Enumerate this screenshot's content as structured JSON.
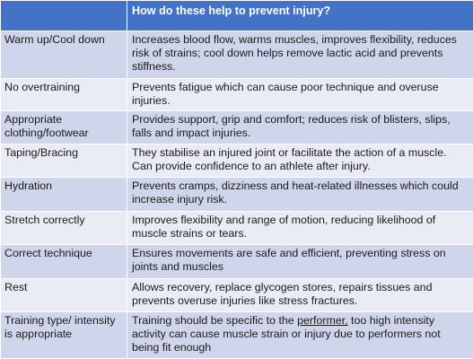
{
  "header": {
    "col1": "",
    "col2": "How do these help to prevent injury?"
  },
  "rows": [
    {
      "label": "Warm up/Cool down",
      "desc": "Increases blood flow, warms muscles, improves flexibility, reduces risk of strains; cool down helps remove lactic acid and prevents stiffness."
    },
    {
      "label": "No overtraining",
      "desc": "Prevents fatigue which can cause poor technique and overuse injuries."
    },
    {
      "label": "Appropriate clothing/footwear",
      "desc": "Provides support, grip and comfort; reduces risk of blisters, slips, falls and impact injuries."
    },
    {
      "label": "Taping/Bracing",
      "desc": "They stabilise an injured joint or facilitate the action of a muscle. Can provide confidence to an athlete after injury."
    },
    {
      "label": "Hydration",
      "desc": "Prevents cramps, dizziness and heat-related illnesses which could increase injury risk."
    },
    {
      "label": "Stretch correctly",
      "desc": "Improves flexibility and range of motion, reducing likelihood of muscle strains or tears."
    },
    {
      "label": "Correct technique",
      "desc": "Ensures movements are safe and efficient, preventing stress on joints and muscles"
    },
    {
      "label": "Rest",
      "desc": "Allows recovery, replace glycogen stores, repairs tissues and prevents overuse injuries like stress fractures."
    },
    {
      "label": "Training type/ intensity is appropriate",
      "desc_before": "Training should be specific to the ",
      "desc_underlined": "performer,",
      "desc_after": " too high intensity activity can cause muscle strain or injury due to performers not being fit enough"
    }
  ],
  "colors": {
    "header_bg": "#4472c4",
    "header_text": "#ffffff",
    "row_shade": "#cfd5ea",
    "row_light": "#e9ebf5"
  }
}
